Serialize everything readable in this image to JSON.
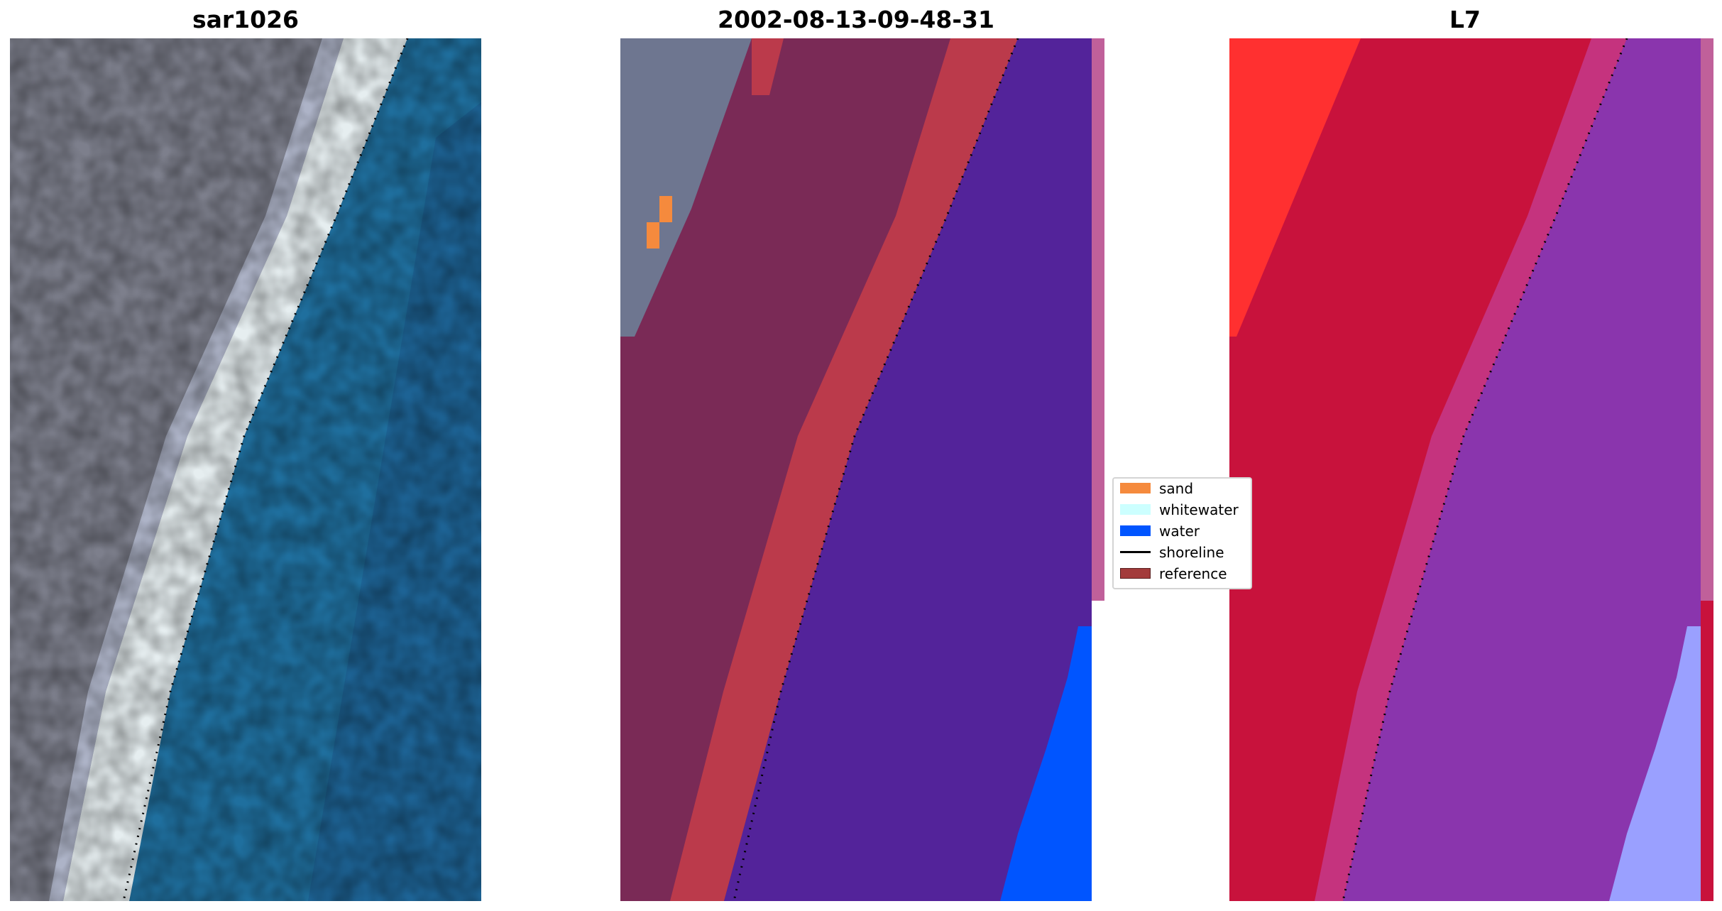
{
  "panels": [
    {
      "title": "sar1026"
    },
    {
      "title": "2002-08-13-09-48-31"
    },
    {
      "title": "L7"
    }
  ],
  "legend": {
    "items": [
      {
        "label": "sand",
        "type": "patch",
        "color": "#f58a3d"
      },
      {
        "label": "whitewater",
        "type": "patch",
        "color": "#ccffff"
      },
      {
        "label": "water",
        "type": "patch",
        "color": "#0055ff"
      },
      {
        "label": "shoreline",
        "type": "line",
        "color": "#000000"
      },
      {
        "label": "reference",
        "type": "patch",
        "color": "#a33b3b"
      }
    ]
  },
  "colors": {
    "land_rgb": "#7d7f8c",
    "beach_rgb": "#e6eef0",
    "water_rgb": "#1f6f9e",
    "land_class": "#7a2a56",
    "reference_band": "#bb3a4b",
    "water_class": "#53239a",
    "water_detected": "#0055ff",
    "strip_pink": "#c0609a",
    "land_mndwi": "#c8123c",
    "land_mndwi_bright": "#ff3030",
    "water_mndwi": "#8a35ad",
    "water_mndwi_light": "#9aa0ff",
    "shoreline": "#000000"
  }
}
